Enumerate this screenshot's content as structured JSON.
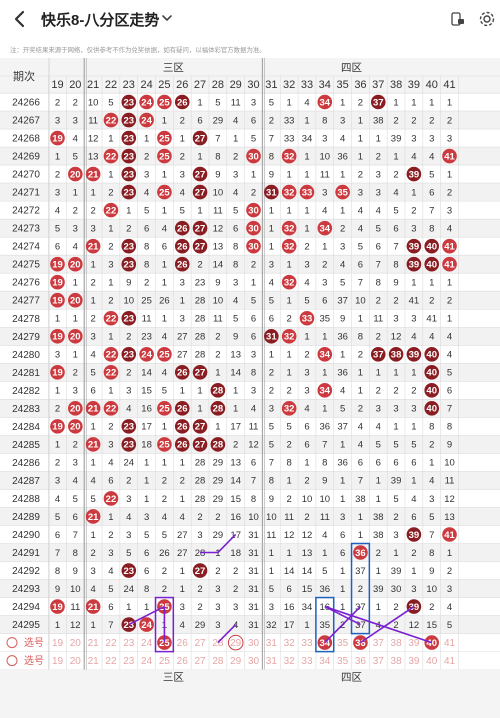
{
  "header": {
    "title": "快乐8-八分区走势",
    "back_icon": "arrow-left-icon",
    "dropdown_icon": "chevron-down-icon",
    "action_icons": [
      "phone-lock-icon",
      "settings-gear-icon"
    ]
  },
  "notice": "注：开奖结果来源于网络，仅供参考不作为兑奖依据，如有疑问，以福体彩官方数据为准。",
  "table": {
    "period_header": "期次",
    "zones": [
      {
        "label": "三区",
        "from": 21,
        "to": 30
      },
      {
        "label": "四区",
        "from": 31,
        "to": 40
      }
    ],
    "columns": [
      19,
      20,
      21,
      22,
      23,
      24,
      25,
      26,
      27,
      28,
      29,
      30,
      31,
      32,
      33,
      34,
      35,
      36,
      37,
      38,
      39,
      40,
      41
    ],
    "rows": [
      {
        "p": "24266",
        "c": [
          2,
          2,
          10,
          5,
          23,
          24,
          25,
          26,
          1,
          5,
          11,
          3,
          5,
          1,
          4,
          34,
          1,
          2,
          37,
          1,
          1,
          1,
          1
        ]
      },
      {
        "p": "24267",
        "c": [
          3,
          3,
          11,
          22,
          23,
          24,
          1,
          2,
          6,
          29,
          4,
          6,
          2,
          33,
          1,
          8,
          3,
          1,
          38,
          2,
          2,
          2,
          2
        ]
      },
      {
        "p": "24268",
        "c": [
          19,
          4,
          12,
          1,
          23,
          1,
          25,
          1,
          27,
          7,
          1,
          5,
          7,
          33,
          34,
          3,
          4,
          1,
          1,
          39,
          3,
          3,
          3
        ]
      },
      {
        "p": "24269",
        "c": [
          1,
          5,
          13,
          22,
          23,
          2,
          25,
          2,
          1,
          8,
          2,
          30,
          8,
          32,
          1,
          10,
          36,
          1,
          2,
          1,
          4,
          4,
          41
        ]
      },
      {
        "p": "24270",
        "c": [
          2,
          20,
          21,
          1,
          23,
          3,
          1,
          3,
          27,
          9,
          3,
          1,
          9,
          1,
          1,
          11,
          1,
          2,
          3,
          2,
          39,
          5,
          1
        ]
      },
      {
        "p": "24271",
        "c": [
          3,
          1,
          1,
          2,
          23,
          4,
          25,
          4,
          27,
          10,
          4,
          2,
          31,
          32,
          33,
          3,
          35,
          3,
          3,
          4,
          1,
          6,
          2
        ]
      },
      {
        "p": "24272",
        "c": [
          4,
          2,
          2,
          22,
          1,
          5,
          1,
          5,
          1,
          11,
          5,
          30,
          1,
          1,
          1,
          4,
          1,
          4,
          4,
          5,
          2,
          7,
          3
        ]
      },
      {
        "p": "24273",
        "c": [
          5,
          3,
          3,
          1,
          2,
          6,
          4,
          26,
          27,
          12,
          6,
          30,
          1,
          32,
          1,
          34,
          2,
          4,
          5,
          6,
          3,
          8,
          4
        ]
      },
      {
        "p": "24274",
        "c": [
          6,
          4,
          21,
          2,
          23,
          8,
          6,
          26,
          27,
          13,
          8,
          30,
          1,
          32,
          2,
          1,
          3,
          5,
          6,
          7,
          39,
          40,
          41
        ]
      },
      {
        "p": "24275",
        "c": [
          19,
          20,
          1,
          3,
          23,
          8,
          1,
          26,
          2,
          14,
          8,
          2,
          3,
          1,
          3,
          2,
          4,
          6,
          7,
          8,
          39,
          40,
          41
        ]
      },
      {
        "p": "24276",
        "c": [
          19,
          1,
          2,
          1,
          9,
          2,
          1,
          3,
          23,
          9,
          3,
          1,
          4,
          32,
          4,
          3,
          5,
          7,
          8,
          9,
          1,
          1,
          1
        ]
      },
      {
        "p": "24277",
        "c": [
          19,
          20,
          1,
          2,
          10,
          25,
          26,
          1,
          28,
          10,
          4,
          5,
          5,
          1,
          5,
          6,
          37,
          10,
          2,
          2,
          41,
          2,
          2
        ]
      },
      {
        "p": "24278",
        "c": [
          1,
          1,
          2,
          22,
          23,
          11,
          1,
          3,
          28,
          11,
          5,
          6,
          6,
          2,
          33,
          35,
          9,
          1,
          11,
          3,
          3,
          41,
          1
        ]
      },
      {
        "p": "24279",
        "c": [
          19,
          20,
          3,
          1,
          2,
          23,
          4,
          27,
          28,
          2,
          9,
          6,
          31,
          32,
          1,
          1,
          36,
          8,
          2,
          12,
          4,
          4,
          4
        ]
      },
      {
        "p": "24280",
        "c": [
          3,
          1,
          4,
          22,
          23,
          24,
          25,
          27,
          28,
          2,
          13,
          3,
          1,
          1,
          2,
          34,
          1,
          2,
          37,
          38,
          39,
          40,
          4
        ]
      },
      {
        "p": "24281",
        "c": [
          19,
          2,
          5,
          22,
          2,
          14,
          4,
          26,
          27,
          1,
          14,
          8,
          2,
          1,
          3,
          1,
          36,
          1,
          1,
          1,
          1,
          40,
          5
        ]
      },
      {
        "p": "24282",
        "c": [
          1,
          3,
          6,
          1,
          3,
          15,
          5,
          1,
          1,
          28,
          1,
          3,
          2,
          2,
          3,
          34,
          4,
          1,
          2,
          2,
          2,
          40,
          6
        ]
      },
      {
        "p": "24283",
        "c": [
          2,
          20,
          21,
          22,
          4,
          16,
          25,
          26,
          1,
          28,
          1,
          4,
          3,
          32,
          4,
          1,
          5,
          2,
          3,
          3,
          3,
          40,
          7
        ]
      },
      {
        "p": "24284",
        "c": [
          19,
          20,
          1,
          2,
          23,
          17,
          1,
          26,
          27,
          1,
          17,
          11,
          5,
          5,
          6,
          36,
          37,
          4,
          4,
          1,
          1,
          8,
          8
        ]
      },
      {
        "p": "24285",
        "c": [
          1,
          2,
          21,
          3,
          23,
          18,
          25,
          26,
          27,
          28,
          2,
          12,
          5,
          2,
          6,
          7,
          1,
          4,
          5,
          5,
          5,
          2,
          9
        ]
      },
      {
        "p": "24286",
        "c": [
          2,
          3,
          1,
          4,
          24,
          1,
          1,
          1,
          28,
          29,
          13,
          6,
          7,
          8,
          1,
          8,
          36,
          6,
          6,
          6,
          6,
          1,
          10
        ]
      },
      {
        "p": "24287",
        "c": [
          3,
          4,
          4,
          6,
          2,
          1,
          2,
          2,
          28,
          29,
          14,
          7,
          8,
          1,
          2,
          9,
          1,
          7,
          1,
          39,
          1,
          4,
          11
        ]
      },
      {
        "p": "24288",
        "c": [
          4,
          5,
          5,
          22,
          3,
          1,
          2,
          1,
          28,
          29,
          15,
          8,
          9,
          2,
          10,
          10,
          1,
          38,
          1,
          5,
          4,
          3,
          12
        ]
      },
      {
        "p": "24289",
        "c": [
          5,
          6,
          21,
          1,
          4,
          3,
          4,
          4,
          2,
          2,
          16,
          10,
          10,
          11,
          2,
          11,
          3,
          1,
          38,
          2,
          6,
          5,
          13
        ]
      },
      {
        "p": "24290",
        "c": [
          6,
          7,
          1,
          2,
          3,
          5,
          5,
          27,
          3,
          29,
          17,
          31,
          11,
          12,
          12,
          4,
          6,
          1,
          38,
          3,
          39,
          7,
          41
        ]
      },
      {
        "p": "24291",
        "c": [
          7,
          8,
          2,
          3,
          5,
          6,
          26,
          27,
          28,
          1,
          18,
          31,
          1,
          1,
          13,
          1,
          6,
          36,
          2,
          1,
          2,
          8,
          1
        ]
      },
      {
        "p": "24292",
        "c": [
          8,
          9,
          3,
          4,
          23,
          6,
          2,
          1,
          27,
          2,
          2,
          31,
          1,
          14,
          14,
          5,
          1,
          37,
          1,
          39,
          1,
          9,
          2
        ]
      },
      {
        "p": "24293",
        "c": [
          9,
          10,
          4,
          5,
          24,
          8,
          2,
          1,
          2,
          3,
          2,
          31,
          5,
          6,
          15,
          36,
          1,
          2,
          39,
          30,
          3,
          10,
          3
        ]
      },
      {
        "p": "24294",
        "c": [
          19,
          11,
          21,
          6,
          1,
          1,
          25,
          3,
          2,
          3,
          3,
          31,
          3,
          16,
          34,
          16,
          1,
          37,
          1,
          2,
          39,
          2,
          4
        ]
      },
      {
        "p": "24295",
        "c": [
          1,
          12,
          1,
          7,
          23,
          24,
          1,
          4,
          29,
          3,
          4,
          31,
          32,
          17,
          1,
          35,
          2,
          37,
          4,
          2,
          12,
          15,
          5
        ]
      }
    ],
    "pick_label": "选号",
    "footer_zones": [
      "三区",
      "四区"
    ]
  },
  "colors": {
    "ball_bright": "#cc3a3f",
    "ball_dark": "#8a1d22",
    "stripe": "#f2f2f2",
    "connector": "#7a1fd1"
  }
}
